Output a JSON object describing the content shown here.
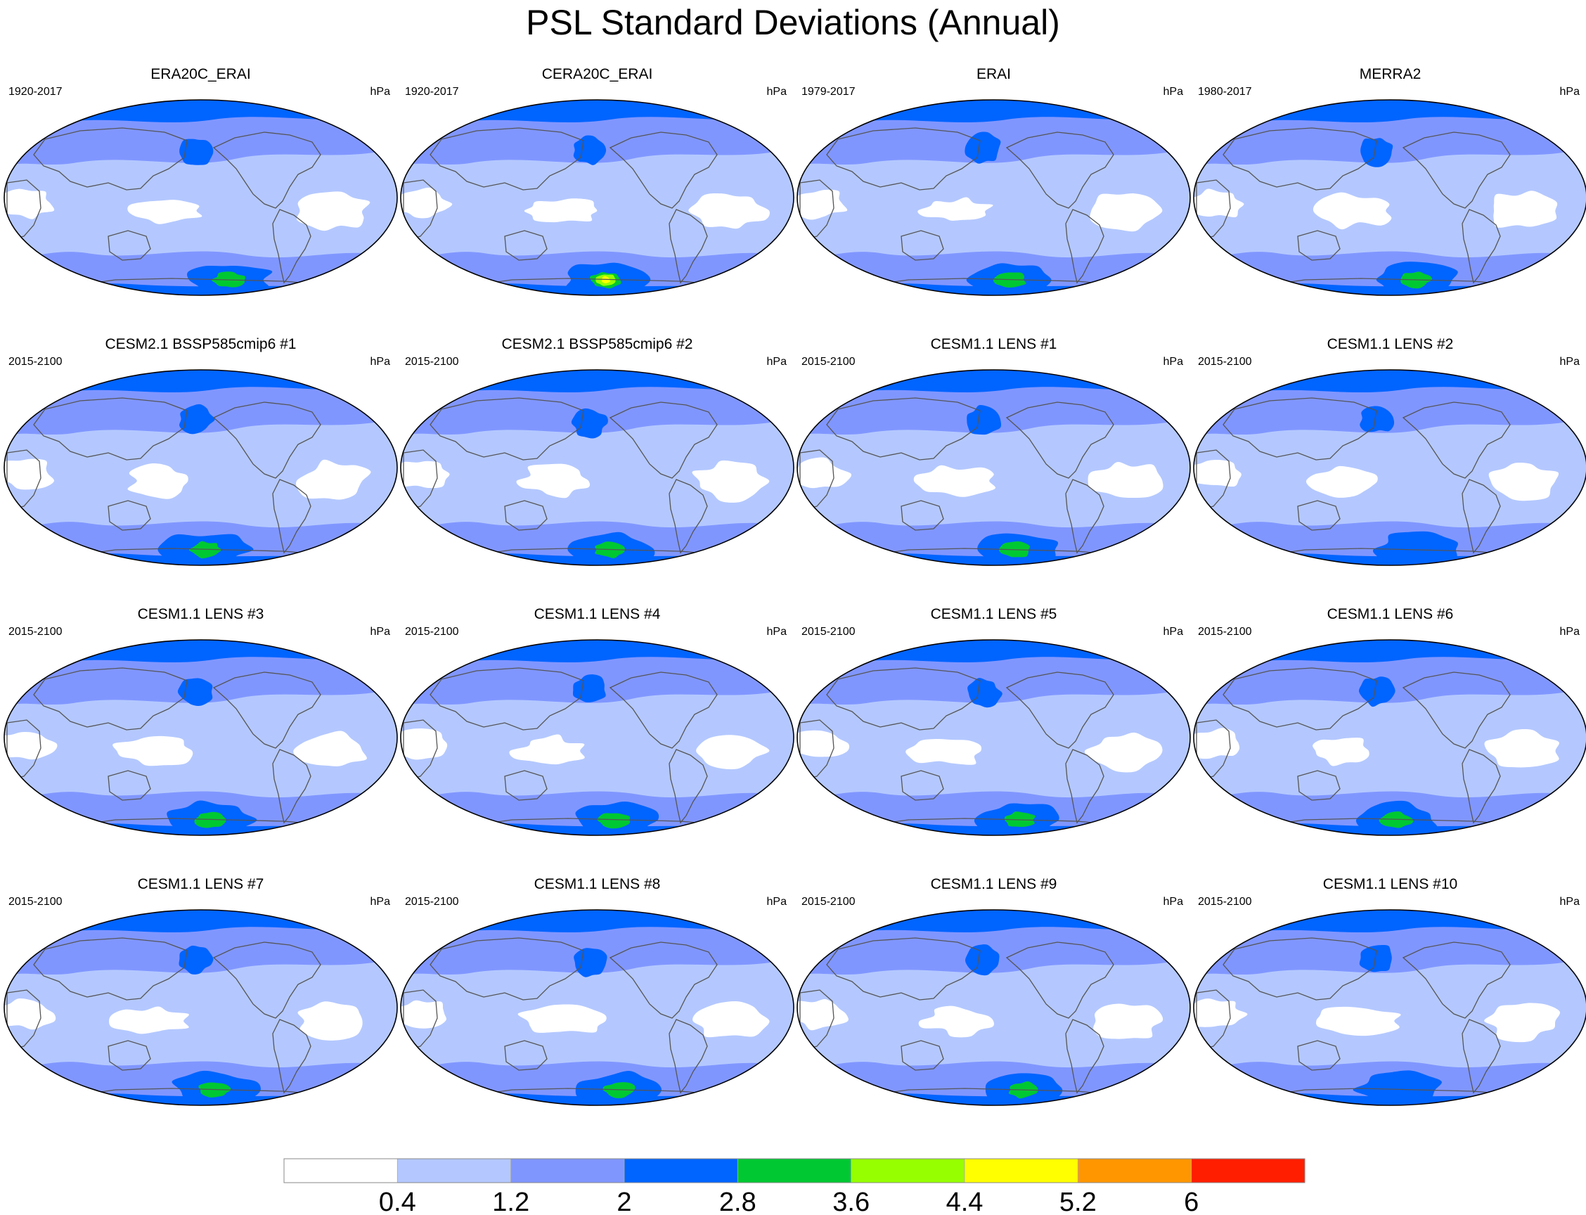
{
  "figure": {
    "title": "PSL Standard Deviations (Annual)"
  },
  "chart_data": {
    "type": "heatmap",
    "title": "PSL Standard Deviations (Annual)",
    "variable": "PSL",
    "units": "hPa",
    "projection": "Robinson (Pacific-centered global map)",
    "colorbar": {
      "levels": [
        0.4,
        1.2,
        2,
        2.8,
        3.6,
        4.4,
        5.2,
        6
      ],
      "tick_labels": [
        "0.4",
        "1.2",
        "2",
        "2.8",
        "3.6",
        "4.4",
        "5.2",
        "6"
      ],
      "colors": [
        "#ffffff",
        "#b4c8ff",
        "#8096ff",
        "#0064ff",
        "#00c832",
        "#96ff00",
        "#ffff00",
        "#ff9600",
        "#ff1e00"
      ]
    },
    "panels": [
      {
        "title": "ERA20C_ERAI",
        "period": "1920-2017",
        "units": "hPa",
        "max_category": 4
      },
      {
        "title": "CERA20C_ERAI",
        "period": "1920-2017",
        "units": "hPa",
        "max_category": 6
      },
      {
        "title": "ERAI",
        "period": "1979-2017",
        "units": "hPa",
        "max_category": 4
      },
      {
        "title": "MERRA2",
        "period": "1980-2017",
        "units": "hPa",
        "max_category": 4
      },
      {
        "title": "CESM2.1 BSSP585cmip6 #1",
        "period": "2015-2100",
        "units": "hPa",
        "max_category": 4
      },
      {
        "title": "CESM2.1 BSSP585cmip6 #2",
        "period": "2015-2100",
        "units": "hPa",
        "max_category": 4
      },
      {
        "title": "CESM1.1 LENS #1",
        "period": "2015-2100",
        "units": "hPa",
        "max_category": 4
      },
      {
        "title": "CESM1.1 LENS #2",
        "period": "2015-2100",
        "units": "hPa",
        "max_category": 3
      },
      {
        "title": "CESM1.1 LENS #3",
        "period": "2015-2100",
        "units": "hPa",
        "max_category": 4
      },
      {
        "title": "CESM1.1 LENS #4",
        "period": "2015-2100",
        "units": "hPa",
        "max_category": 4
      },
      {
        "title": "CESM1.1 LENS #5",
        "period": "2015-2100",
        "units": "hPa",
        "max_category": 4
      },
      {
        "title": "CESM1.1 LENS #6",
        "period": "2015-2100",
        "units": "hPa",
        "max_category": 4
      },
      {
        "title": "CESM1.1 LENS #7",
        "period": "2015-2100",
        "units": "hPa",
        "max_category": 4
      },
      {
        "title": "CESM1.1 LENS #8",
        "period": "2015-2100",
        "units": "hPa",
        "max_category": 4
      },
      {
        "title": "CESM1.1 LENS #9",
        "period": "2015-2100",
        "units": "hPa",
        "max_category": 4
      },
      {
        "title": "CESM1.1 LENS #10",
        "period": "2015-2100",
        "units": "hPa",
        "max_category": 3
      }
    ]
  }
}
